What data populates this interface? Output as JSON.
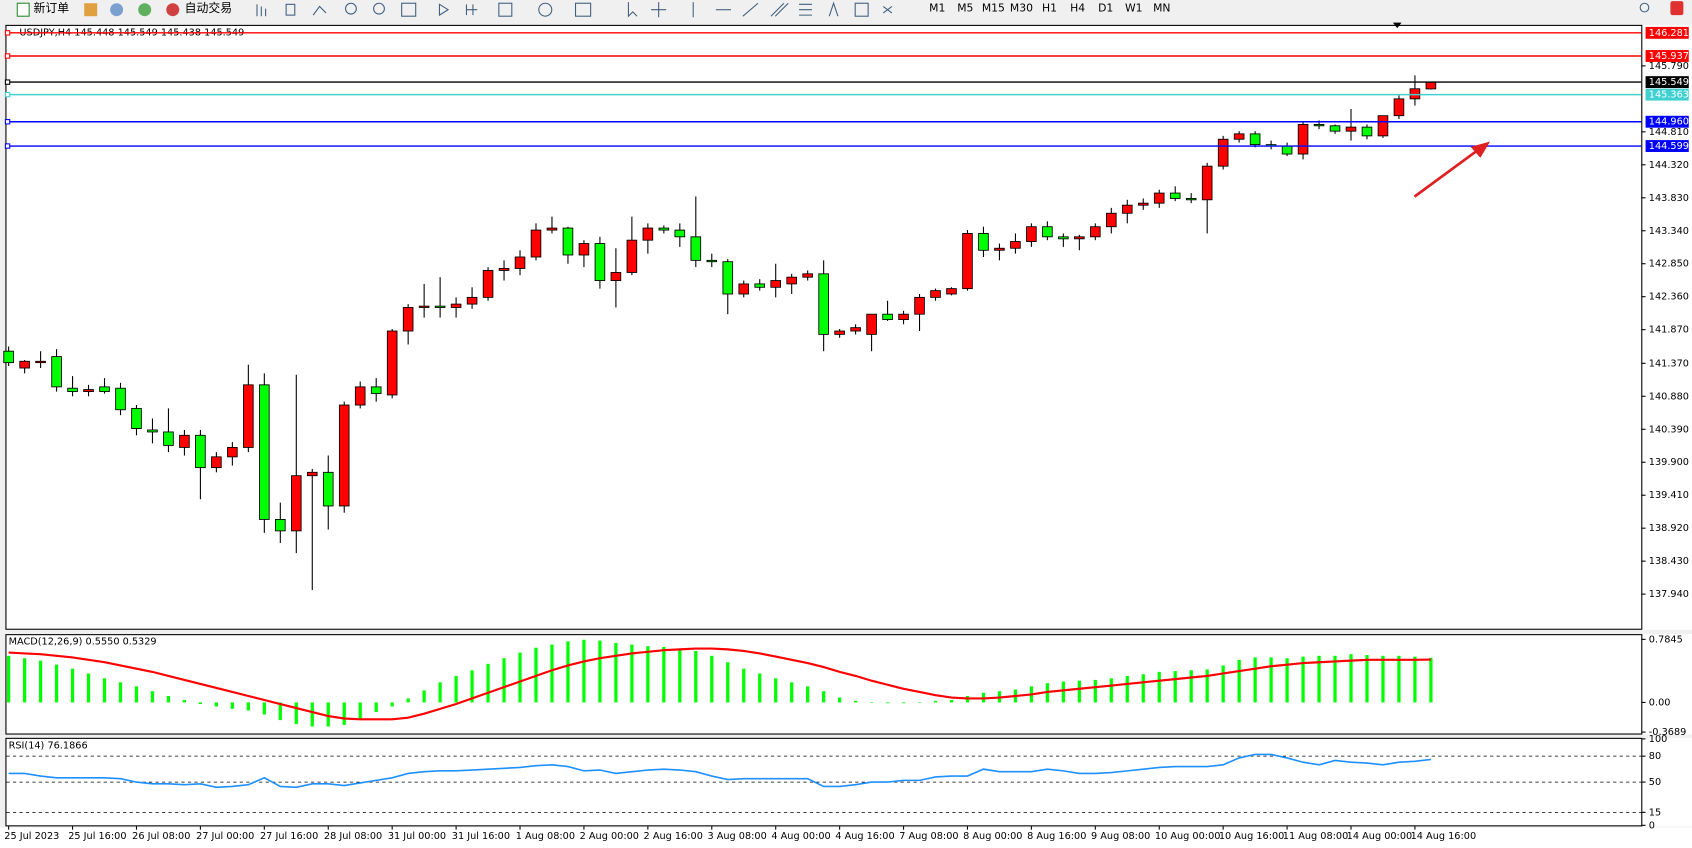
{
  "toolbar": {
    "new_order": "新订单",
    "auto_trading": "自动交易",
    "timeframes": [
      "M1",
      "M5",
      "M15",
      "M30",
      "H1",
      "H4",
      "D1",
      "W1",
      "MN"
    ]
  },
  "chart_data": [
    {
      "type": "candlestick",
      "title": "USDJPY,H4 145.448 145.549 145.438 145.549",
      "categories": [
        "25 Jul 2023",
        null,
        null,
        null,
        "25 Jul 16:00",
        null,
        null,
        null,
        "26 Jul 08:00",
        null,
        null,
        null,
        "27 Jul 00:00",
        null,
        null,
        null,
        "27 Jul 16:00",
        null,
        null,
        null,
        "28 Jul 08:00",
        null,
        null,
        null,
        "31 Jul 00:00",
        null,
        null,
        null,
        "31 Jul 16:00",
        null,
        null,
        null,
        "1 Aug 08:00",
        null,
        null,
        null,
        "2 Aug 00:00",
        null,
        null,
        null,
        "2 Aug 16:00",
        null,
        null,
        null,
        "3 Aug 08:00",
        null,
        null,
        null,
        "4 Aug 00:00",
        null,
        null,
        null,
        "4 Aug 16:00",
        null,
        null,
        null,
        "7 Aug 08:00",
        null,
        null,
        null,
        "8 Aug 00:00",
        null,
        null,
        null,
        "8 Aug 16:00",
        null,
        null,
        null,
        "9 Aug 08:00",
        null,
        null,
        null,
        "10 Aug 00:00",
        null,
        null,
        null,
        "10 Aug 16:00",
        null,
        null,
        null,
        "11 Aug 08:00",
        null,
        null,
        null,
        "14 Aug 00:00",
        null,
        null,
        null,
        "14 Aug 16:00",
        null
      ],
      "open": [
        141.55,
        141.3,
        141.38,
        141.47,
        141.0,
        140.95,
        141.02,
        141.0,
        140.7,
        140.38,
        140.35,
        140.12,
        140.3,
        139.82,
        139.98,
        140.12,
        141.05,
        139.05,
        138.88,
        139.7,
        139.75,
        139.25,
        140.75,
        141.02,
        140.9,
        141.85,
        142.2,
        142.22,
        142.2,
        142.25,
        142.35,
        142.75,
        142.78,
        142.95,
        143.35,
        143.38,
        142.98,
        143.15,
        142.6,
        142.72,
        143.2,
        143.38,
        143.35,
        143.25,
        142.9,
        142.88,
        142.4,
        142.55,
        142.5,
        142.55,
        142.65,
        142.7,
        141.8,
        141.85,
        141.8,
        142.1,
        142.02,
        142.1,
        142.35,
        142.4,
        142.48,
        143.3,
        143.05,
        143.08,
        143.18,
        143.4,
        143.25,
        143.22,
        143.25,
        143.4,
        143.6,
        143.72,
        143.75,
        143.9,
        143.82,
        143.8,
        144.3,
        144.7,
        144.78,
        144.62,
        144.6,
        144.48,
        144.92,
        144.9,
        144.82,
        144.88,
        144.75,
        145.05,
        145.3,
        145.448
      ],
      "high": [
        141.62,
        141.42,
        141.55,
        141.58,
        141.18,
        141.05,
        141.15,
        141.08,
        140.75,
        140.55,
        140.7,
        140.38,
        140.38,
        140.05,
        140.2,
        141.35,
        141.22,
        139.3,
        141.2,
        139.8,
        140.0,
        140.8,
        141.1,
        141.15,
        141.88,
        142.25,
        142.55,
        142.65,
        142.35,
        142.5,
        142.8,
        142.9,
        143.05,
        143.45,
        143.55,
        143.4,
        143.2,
        143.25,
        143.08,
        143.55,
        143.45,
        143.42,
        143.45,
        143.85,
        143.0,
        142.92,
        142.6,
        142.62,
        142.85,
        142.7,
        142.75,
        142.9,
        141.88,
        141.95,
        142.1,
        142.3,
        142.15,
        142.4,
        142.48,
        142.5,
        143.35,
        143.4,
        143.15,
        143.3,
        143.45,
        143.48,
        143.3,
        143.28,
        143.45,
        143.68,
        143.8,
        143.82,
        143.95,
        144.0,
        143.9,
        144.35,
        144.75,
        144.82,
        144.82,
        144.68,
        144.65,
        144.95,
        144.98,
        144.92,
        145.15,
        144.92,
        145.05,
        145.35,
        145.65,
        145.549
      ],
      "low": [
        141.33,
        141.22,
        141.3,
        140.95,
        140.88,
        140.88,
        140.92,
        140.6,
        140.3,
        140.18,
        140.05,
        140.0,
        139.35,
        139.75,
        139.85,
        140.05,
        138.85,
        138.7,
        138.55,
        138.0,
        138.9,
        139.15,
        140.7,
        140.8,
        140.85,
        141.65,
        142.05,
        142.05,
        142.05,
        142.18,
        142.3,
        142.6,
        142.68,
        142.9,
        143.3,
        142.85,
        142.8,
        142.48,
        142.2,
        142.68,
        143.0,
        143.3,
        143.1,
        142.8,
        142.8,
        142.1,
        142.35,
        142.45,
        142.35,
        142.4,
        142.6,
        141.55,
        141.75,
        141.8,
        141.55,
        142.0,
        141.95,
        141.85,
        142.3,
        142.38,
        142.45,
        142.95,
        142.9,
        143.0,
        143.1,
        143.2,
        143.1,
        143.05,
        143.2,
        143.3,
        143.45,
        143.65,
        143.68,
        143.78,
        143.75,
        143.3,
        144.25,
        144.65,
        144.58,
        144.55,
        144.45,
        144.4,
        144.85,
        144.78,
        144.68,
        144.7,
        144.72,
        145.0,
        145.2,
        145.438
      ],
      "close": [
        141.38,
        141.4,
        141.4,
        141.02,
        140.95,
        140.98,
        140.95,
        140.68,
        140.4,
        140.35,
        140.15,
        140.3,
        139.82,
        139.98,
        140.12,
        141.05,
        139.05,
        138.88,
        139.7,
        139.75,
        139.25,
        140.75,
        141.02,
        140.92,
        141.85,
        142.2,
        142.22,
        142.2,
        142.25,
        142.35,
        142.75,
        142.78,
        142.95,
        143.35,
        143.38,
        142.98,
        143.15,
        142.6,
        142.72,
        143.2,
        143.38,
        143.35,
        143.25,
        142.9,
        142.88,
        142.4,
        142.55,
        142.5,
        142.6,
        142.65,
        142.7,
        141.8,
        141.85,
        141.9,
        142.1,
        142.02,
        142.1,
        142.35,
        142.45,
        142.48,
        143.3,
        143.05,
        143.08,
        143.18,
        143.4,
        143.25,
        143.22,
        143.25,
        143.4,
        143.6,
        143.72,
        143.75,
        143.9,
        143.82,
        143.8,
        144.3,
        144.7,
        144.78,
        144.62,
        144.6,
        144.48,
        144.92,
        144.9,
        144.82,
        144.88,
        144.75,
        145.05,
        145.3,
        145.45,
        145.549
      ],
      "up_color": "#ff0000",
      "down_color": "#00ff00",
      "ylim": [
        137.41,
        146.4
      ],
      "yticks": [
        {
          "value": 145.79,
          "label": "145.790"
        },
        {
          "value": 144.81,
          "label": "144.810"
        },
        {
          "value": 144.32,
          "label": "144.320"
        },
        {
          "value": 143.83,
          "label": "143.830"
        },
        {
          "value": 143.34,
          "label": "143.340"
        },
        {
          "value": 142.85,
          "label": "142.850"
        },
        {
          "value": 142.36,
          "label": "142.360"
        },
        {
          "value": 141.87,
          "label": "141.870"
        },
        {
          "value": 141.37,
          "label": "141.370"
        },
        {
          "value": 140.88,
          "label": "140.880"
        },
        {
          "value": 140.39,
          "label": "140.390"
        },
        {
          "value": 139.9,
          "label": "139.900"
        },
        {
          "value": 139.41,
          "label": "139.410"
        },
        {
          "value": 138.92,
          "label": "138.920"
        },
        {
          "value": 138.43,
          "label": "138.430"
        },
        {
          "value": 137.94,
          "label": "137.940"
        }
      ],
      "hlines": [
        {
          "value": 146.281,
          "color": "#ff0000"
        },
        {
          "value": 145.937,
          "color": "#ff0000"
        },
        {
          "value": 145.549,
          "color": "#000000"
        },
        {
          "value": 145.363,
          "color": "#40d0d0"
        },
        {
          "value": 144.96,
          "label": "144.960",
          "color": "#0000ff"
        },
        {
          "value": 144.599,
          "color": "#0000ff"
        }
      ]
    },
    {
      "type": "macd",
      "title": "MACD(12,26,9) 0.5550 0.5329",
      "series": [
        {
          "color": "#00ff00",
          "values": [
            0.58,
            0.55,
            0.52,
            0.47,
            0.42,
            0.36,
            0.3,
            0.25,
            0.2,
            0.14,
            0.08,
            0.03,
            -0.02,
            -0.05,
            -0.08,
            -0.1,
            -0.15,
            -0.22,
            -0.27,
            -0.3,
            -0.3,
            -0.28,
            -0.2,
            -0.12,
            -0.05,
            0.05,
            0.15,
            0.25,
            0.33,
            0.4,
            0.48,
            0.55,
            0.62,
            0.68,
            0.72,
            0.76,
            0.78,
            0.77,
            0.74,
            0.72,
            0.7,
            0.69,
            0.67,
            0.64,
            0.58,
            0.5,
            0.42,
            0.36,
            0.3,
            0.25,
            0.2,
            0.14,
            0.06,
            0.02,
            0.0,
            -0.01,
            -0.01,
            0.0,
            0.02,
            0.03,
            0.08,
            0.12,
            0.14,
            0.16,
            0.2,
            0.24,
            0.26,
            0.27,
            0.28,
            0.3,
            0.33,
            0.35,
            0.38,
            0.39,
            0.4,
            0.41,
            0.46,
            0.53,
            0.56,
            0.56,
            0.55,
            0.57,
            0.58,
            0.58,
            0.6,
            0.59,
            0.58,
            0.58,
            0.57,
            0.555
          ]
        },
        {
          "color": "#ff0000",
          "values": [
            0.62,
            0.61,
            0.6,
            0.58,
            0.56,
            0.53,
            0.5,
            0.46,
            0.42,
            0.38,
            0.33,
            0.28,
            0.23,
            0.18,
            0.13,
            0.08,
            0.03,
            -0.02,
            -0.07,
            -0.12,
            -0.17,
            -0.2,
            -0.21,
            -0.21,
            -0.21,
            -0.19,
            -0.14,
            -0.08,
            -0.02,
            0.05,
            0.12,
            0.19,
            0.26,
            0.33,
            0.4,
            0.46,
            0.51,
            0.55,
            0.58,
            0.61,
            0.63,
            0.65,
            0.66,
            0.67,
            0.67,
            0.66,
            0.64,
            0.61,
            0.57,
            0.53,
            0.49,
            0.44,
            0.38,
            0.33,
            0.27,
            0.22,
            0.17,
            0.13,
            0.09,
            0.06,
            0.05,
            0.05,
            0.06,
            0.08,
            0.1,
            0.13,
            0.15,
            0.17,
            0.19,
            0.21,
            0.23,
            0.25,
            0.27,
            0.29,
            0.31,
            0.33,
            0.36,
            0.39,
            0.42,
            0.45,
            0.47,
            0.49,
            0.5,
            0.51,
            0.52,
            0.53,
            0.53,
            0.53,
            0.53,
            0.5329
          ]
        }
      ],
      "ylim": [
        -0.4,
        0.85
      ],
      "yticks": [
        0.7845,
        {
          "value": 0,
          "label": "0.00"
        },
        -0.3689
      ]
    },
    {
      "type": "line",
      "title": "RSI(14) 76.1866",
      "color": "#1e90ff",
      "values": [
        60,
        60,
        57,
        55,
        55,
        55,
        55,
        54,
        50,
        48,
        48,
        47,
        48,
        44,
        45,
        47,
        55,
        45,
        44,
        48,
        48,
        46,
        49,
        52,
        55,
        60,
        62,
        63,
        63,
        64,
        65,
        66,
        67,
        69,
        70,
        68,
        63,
        64,
        60,
        62,
        64,
        65,
        64,
        62,
        57,
        53,
        54,
        54,
        54,
        54,
        54,
        45,
        45,
        47,
        50,
        50,
        52,
        52,
        56,
        57,
        57,
        65,
        62,
        62,
        62,
        65,
        63,
        60,
        60,
        61,
        63,
        65,
        67,
        68,
        68,
        68,
        70,
        78,
        82,
        82,
        78,
        73,
        70,
        75,
        73,
        72,
        70,
        73,
        74,
        76.19
      ],
      "ylim": [
        0,
        100
      ],
      "yticks": [
        100,
        80,
        50,
        15,
        0
      ],
      "levels": [
        80,
        50,
        15
      ]
    }
  ]
}
